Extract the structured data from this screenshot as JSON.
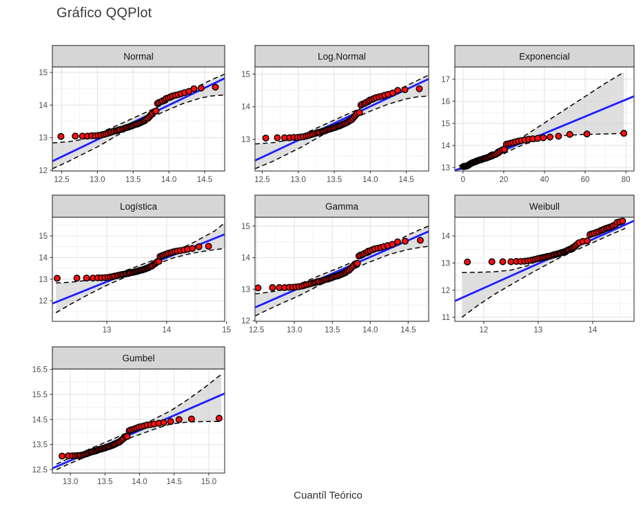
{
  "title": "Gráfico QQPlot",
  "axis": {
    "x_title": "Cuantíl Teórico"
  },
  "colors": {
    "background": "#ffffff",
    "point_fill": "#fa0f0f",
    "point_stroke": "#000000",
    "fit_line": "#1d1dff",
    "band_fill": "#d2d2d2",
    "band_dash_stroke": "#000000",
    "strip_bg": "#d6d6d6",
    "strip_border": "#3c3c3c",
    "panel_border": "#454545",
    "grid_major": "#e3e3e3",
    "grid_minor": "#efefef",
    "tick_label": "#4d4d4d"
  },
  "chart_data": {
    "type": "scatter",
    "subtype": "qq-plot-faceted",
    "title": "Gráfico QQPlot",
    "xlabel": "Cuantíl Teórico",
    "ylabel": "",
    "grid": true,
    "legend": false,
    "sample_y": [
      13.04,
      13.05,
      13.05,
      13.05,
      13.06,
      13.06,
      13.07,
      13.08,
      13.1,
      13.12,
      13.14,
      13.16,
      13.18,
      13.2,
      13.21,
      13.22,
      13.24,
      13.25,
      13.26,
      13.28,
      13.3,
      13.31,
      13.32,
      13.34,
      13.35,
      13.36,
      13.38,
      13.4,
      13.41,
      13.42,
      13.44,
      13.46,
      13.48,
      13.5,
      13.52,
      13.55,
      13.58,
      13.6,
      13.65,
      13.7,
      13.75,
      13.8,
      13.82,
      14.05,
      14.08,
      14.1,
      14.13,
      14.16,
      14.2,
      14.22,
      14.25,
      14.28,
      14.3,
      14.32,
      14.35,
      14.38,
      14.42,
      14.5,
      14.52,
      14.55
    ],
    "facets": [
      {
        "name": "Normal",
        "row": 0,
        "col": 0,
        "xlim": [
          12.37,
          14.78
        ],
        "ylim": [
          11.98,
          15.17
        ],
        "xticks": [
          12.5,
          13.0,
          13.5,
          14.0,
          14.5
        ],
        "xtick_labels": [
          "12.5",
          "13.0",
          "13.5",
          "14.0",
          "14.5"
        ],
        "yticks": [
          12,
          13,
          14,
          15
        ],
        "ytick_labels": [
          "12",
          "13",
          "14",
          "15"
        ],
        "line": [
          12.37,
          12.28,
          14.78,
          14.82
        ],
        "band": {
          "x": [
            12.37,
            12.6,
            12.8,
            13.0,
            13.3,
            13.6,
            13.9,
            14.2,
            14.45,
            14.6,
            14.78
          ],
          "lo": [
            12.05,
            12.28,
            12.5,
            12.72,
            13.1,
            13.45,
            13.77,
            14.05,
            14.22,
            14.28,
            14.31
          ],
          "hi": [
            12.84,
            12.88,
            12.95,
            13.12,
            13.4,
            13.7,
            14.0,
            14.35,
            14.62,
            14.78,
            14.95
          ]
        },
        "x": [
          12.49,
          12.69,
          12.79,
          12.86,
          12.92,
          12.97,
          13.01,
          13.05,
          13.09,
          13.12,
          13.15,
          13.18,
          13.2,
          13.23,
          13.26,
          13.28,
          13.3,
          13.32,
          13.35,
          13.37,
          13.39,
          13.41,
          13.43,
          13.45,
          13.47,
          13.48,
          13.5,
          13.52,
          13.54,
          13.56,
          13.58,
          13.6,
          13.62,
          13.64,
          13.66,
          13.67,
          13.69,
          13.71,
          13.73,
          13.75,
          13.77,
          13.8,
          13.82,
          13.84,
          13.86,
          13.89,
          13.91,
          13.94,
          13.96,
          13.99,
          14.02,
          14.05,
          14.09,
          14.13,
          14.17,
          14.22,
          14.28,
          14.35,
          14.45,
          14.65
        ]
      },
      {
        "name": "Log.Normal",
        "row": 0,
        "col": 1,
        "xlim": [
          12.4,
          14.81
        ],
        "ylim": [
          12.03,
          15.22
        ],
        "xticks": [
          12.5,
          13.0,
          13.5,
          14.0,
          14.5
        ],
        "xtick_labels": [
          "12.5",
          "13.0",
          "13.5",
          "14.0",
          "14.5"
        ],
        "yticks": [
          13,
          14,
          15
        ],
        "ytick_labels": [
          "13",
          "14",
          "15"
        ],
        "line": [
          12.4,
          12.35,
          14.81,
          14.85
        ],
        "band": {
          "x": [
            12.4,
            12.65,
            12.85,
            13.05,
            13.35,
            13.65,
            13.95,
            14.25,
            14.5,
            14.65,
            14.81
          ],
          "lo": [
            12.1,
            12.33,
            12.55,
            12.77,
            13.15,
            13.5,
            13.82,
            14.08,
            14.24,
            14.3,
            14.33
          ],
          "hi": [
            12.86,
            12.9,
            12.97,
            13.14,
            13.44,
            13.74,
            14.04,
            14.38,
            14.64,
            14.8,
            14.97
          ]
        },
        "x": [
          12.55,
          12.71,
          12.81,
          12.88,
          12.94,
          12.99,
          13.03,
          13.07,
          13.11,
          13.14,
          13.17,
          13.2,
          13.23,
          13.26,
          13.28,
          13.3,
          13.33,
          13.35,
          13.37,
          13.39,
          13.41,
          13.43,
          13.45,
          13.47,
          13.49,
          13.51,
          13.53,
          13.55,
          13.57,
          13.58,
          13.6,
          13.62,
          13.64,
          13.66,
          13.68,
          13.7,
          13.72,
          13.74,
          13.76,
          13.78,
          13.8,
          13.82,
          13.85,
          13.87,
          13.89,
          13.92,
          13.94,
          13.97,
          13.99,
          14.02,
          14.05,
          14.08,
          14.12,
          14.16,
          14.2,
          14.25,
          14.31,
          14.38,
          14.48,
          14.68
        ]
      },
      {
        "name": "Exponencial",
        "row": 0,
        "col": 2,
        "xlim": [
          -4,
          84
        ],
        "ylim": [
          12.84,
          17.56
        ],
        "xticks": [
          0,
          20,
          40,
          60,
          80
        ],
        "xtick_labels": [
          "0",
          "20",
          "40",
          "60",
          "80"
        ],
        "yticks": [
          13,
          14,
          15,
          16,
          17
        ],
        "ytick_labels": [
          "13",
          "14",
          "15",
          "16",
          "17"
        ],
        "line": [
          -4,
          12.86,
          84,
          16.23
        ],
        "band": {
          "x": [
            -2,
            5,
            10,
            15,
            20,
            25,
            30,
            35,
            40,
            50,
            60,
            70,
            79
          ],
          "lo": [
            12.9,
            13.1,
            13.28,
            13.45,
            13.62,
            13.85,
            14.05,
            14.18,
            14.28,
            14.45,
            14.5,
            14.52,
            14.55
          ],
          "hi": [
            13.08,
            13.32,
            13.52,
            13.74,
            13.97,
            14.2,
            14.42,
            14.72,
            15.02,
            15.62,
            16.22,
            16.82,
            17.32
          ]
        },
        "x": [
          0.14,
          0.42,
          0.7,
          0.99,
          1.29,
          1.59,
          1.89,
          2.2,
          2.52,
          2.84,
          3.17,
          3.51,
          3.85,
          4.21,
          4.56,
          4.93,
          5.31,
          5.69,
          6.08,
          6.48,
          6.9,
          7.32,
          7.76,
          8.2,
          8.66,
          9.13,
          9.62,
          10.12,
          10.63,
          11.17,
          11.72,
          12.28,
          12.88,
          13.49,
          14.12,
          14.78,
          15.47,
          16.18,
          16.93,
          17.72,
          18.54,
          19.42,
          20.34,
          21.3,
          22.34,
          23.43,
          24.61,
          25.88,
          27.26,
          28.76,
          30.42,
          32.25,
          34.31,
          36.67,
          39.43,
          42.74,
          46.91,
          52.44,
          60.87,
          78.99
        ]
      },
      {
        "name": "Logística",
        "row": 1,
        "col": 0,
        "xlim": [
          12.09,
          14.97
        ],
        "ylim": [
          11.05,
          15.86
        ],
        "xticks": [
          13,
          14,
          15
        ],
        "xtick_labels": [
          "13",
          "14",
          "15"
        ],
        "yticks": [
          12,
          13,
          14,
          15
        ],
        "ytick_labels": [
          "12",
          "13",
          "14",
          "15"
        ],
        "line": [
          12.09,
          11.87,
          14.97,
          15.07
        ],
        "band": {
          "x": [
            12.15,
            12.4,
            12.7,
            13.0,
            13.4,
            13.8,
            14.1,
            14.4,
            14.6,
            14.8,
            14.97
          ],
          "lo": [
            11.45,
            11.85,
            12.3,
            12.72,
            13.2,
            13.65,
            13.97,
            14.18,
            14.28,
            14.36,
            14.42
          ],
          "hi": [
            12.82,
            12.86,
            12.95,
            13.12,
            13.48,
            13.9,
            14.25,
            14.62,
            14.92,
            15.22,
            15.6
          ]
        },
        "x": [
          12.17,
          12.5,
          12.66,
          12.77,
          12.85,
          12.91,
          12.97,
          13.02,
          13.06,
          13.1,
          13.13,
          13.17,
          13.2,
          13.23,
          13.26,
          13.28,
          13.31,
          13.33,
          13.36,
          13.38,
          13.4,
          13.43,
          13.45,
          13.47,
          13.49,
          13.51,
          13.53,
          13.55,
          13.57,
          13.59,
          13.61,
          13.63,
          13.65,
          13.67,
          13.69,
          13.71,
          13.73,
          13.75,
          13.77,
          13.8,
          13.82,
          13.84,
          13.87,
          13.89,
          13.92,
          13.94,
          13.97,
          14.0,
          14.03,
          14.07,
          14.1,
          14.14,
          14.18,
          14.23,
          14.29,
          14.35,
          14.43,
          14.54,
          14.7,
          15.03
        ]
      },
      {
        "name": "Gamma",
        "row": 1,
        "col": 1,
        "xlim": [
          12.48,
          14.77
        ],
        "ylim": [
          11.98,
          15.28
        ],
        "xticks": [
          12.5,
          13.0,
          13.5,
          14.0,
          14.5
        ],
        "xtick_labels": [
          "12.5",
          "13.0",
          "13.5",
          "14.0",
          "14.5"
        ],
        "yticks": [
          12,
          13,
          14,
          15
        ],
        "ytick_labels": [
          "12",
          "13",
          "14",
          "15"
        ],
        "line": [
          12.48,
          12.42,
          14.77,
          14.83
        ],
        "band": {
          "x": [
            12.48,
            12.65,
            12.85,
            13.05,
            13.35,
            13.65,
            13.95,
            14.25,
            14.5,
            14.65,
            14.77
          ],
          "lo": [
            12.15,
            12.35,
            12.57,
            12.78,
            13.15,
            13.5,
            13.82,
            14.1,
            14.26,
            14.32,
            14.36
          ],
          "hi": [
            12.85,
            12.9,
            12.98,
            13.15,
            13.45,
            13.74,
            14.05,
            14.4,
            14.72,
            14.88,
            15.0
          ]
        },
        "x": [
          12.52,
          12.71,
          12.8,
          12.87,
          12.93,
          12.98,
          13.02,
          13.06,
          13.1,
          13.13,
          13.16,
          13.19,
          13.22,
          13.25,
          13.27,
          13.29,
          13.31,
          13.33,
          13.36,
          13.38,
          13.4,
          13.42,
          13.44,
          13.46,
          13.48,
          13.49,
          13.51,
          13.53,
          13.55,
          13.57,
          13.59,
          13.61,
          13.63,
          13.65,
          13.67,
          13.68,
          13.7,
          13.72,
          13.74,
          13.76,
          13.78,
          13.81,
          13.83,
          13.85,
          13.87,
          13.9,
          13.92,
          13.95,
          13.97,
          14.0,
          14.03,
          14.06,
          14.1,
          14.14,
          14.18,
          14.23,
          14.29,
          14.36,
          14.46,
          14.66
        ]
      },
      {
        "name": "Weibull",
        "row": 1,
        "col": 2,
        "xlim": [
          11.47,
          14.76
        ],
        "ylim": [
          10.85,
          14.69
        ],
        "xticks": [
          12,
          13,
          14
        ],
        "xtick_labels": [
          "12",
          "13",
          "14"
        ],
        "yticks": [
          11,
          12,
          13,
          14
        ],
        "ytick_labels": [
          "11",
          "12",
          "13",
          "14"
        ],
        "line": [
          11.47,
          11.6,
          14.76,
          14.56
        ],
        "band": {
          "x": [
            11.6,
            11.9,
            12.2,
            12.5,
            12.8,
            13.1,
            13.4,
            13.7,
            14.0,
            14.3,
            14.6
          ],
          "lo": [
            11.0,
            11.45,
            11.85,
            12.2,
            12.55,
            12.88,
            13.2,
            13.48,
            13.75,
            14.02,
            14.28
          ],
          "hi": [
            12.65,
            12.66,
            12.68,
            12.74,
            12.9,
            13.18,
            13.45,
            13.72,
            13.98,
            14.25,
            14.47
          ]
        },
        "x": [
          11.7,
          12.15,
          12.35,
          12.5,
          12.6,
          12.68,
          12.75,
          12.81,
          12.86,
          12.91,
          12.95,
          12.99,
          13.03,
          13.07,
          13.1,
          13.13,
          13.16,
          13.19,
          13.22,
          13.25,
          13.28,
          13.3,
          13.33,
          13.35,
          13.38,
          13.4,
          13.42,
          13.45,
          13.47,
          13.49,
          13.51,
          13.53,
          13.55,
          13.57,
          13.6,
          13.62,
          13.64,
          13.67,
          13.69,
          13.72,
          13.75,
          13.82,
          13.9,
          13.95,
          13.99,
          14.03,
          14.07,
          14.11,
          14.15,
          14.18,
          14.21,
          14.25,
          14.28,
          14.31,
          14.35,
          14.38,
          14.42,
          14.45,
          14.5,
          14.55
        ]
      },
      {
        "name": "Gumbel",
        "row": 2,
        "col": 0,
        "xlim": [
          12.74,
          15.23
        ],
        "ylim": [
          12.36,
          16.52
        ],
        "xticks": [
          13.0,
          13.5,
          14.0,
          14.5,
          15.0
        ],
        "xtick_labels": [
          "13.0",
          "13.5",
          "14.0",
          "14.5",
          "15.0"
        ],
        "yticks": [
          12.5,
          13.5,
          14.5,
          15.5,
          16.5
        ],
        "ytick_labels": [
          "12.5",
          "13.5",
          "14.5",
          "15.5",
          "16.5"
        ],
        "line": [
          12.74,
          12.55,
          15.23,
          15.54
        ],
        "band": {
          "x": [
            12.8,
            13.0,
            13.3,
            13.6,
            13.9,
            14.2,
            14.45,
            14.7,
            14.95,
            15.18
          ],
          "lo": [
            12.5,
            12.75,
            13.1,
            13.46,
            13.8,
            14.1,
            14.32,
            14.4,
            14.42,
            14.42
          ],
          "hi": [
            12.72,
            12.98,
            13.35,
            13.7,
            14.08,
            14.5,
            14.85,
            15.3,
            15.8,
            16.3
          ]
        },
        "x": [
          12.88,
          12.97,
          13.03,
          13.07,
          13.1,
          13.13,
          13.15,
          13.18,
          13.2,
          13.22,
          13.24,
          13.26,
          13.28,
          13.3,
          13.31,
          13.33,
          13.35,
          13.37,
          13.38,
          13.4,
          13.41,
          13.43,
          13.45,
          13.46,
          13.48,
          13.5,
          13.51,
          13.53,
          13.55,
          13.56,
          13.58,
          13.6,
          13.62,
          13.63,
          13.65,
          13.67,
          13.69,
          13.71,
          13.73,
          13.75,
          13.77,
          13.8,
          13.82,
          13.85,
          13.87,
          13.9,
          13.93,
          13.96,
          13.99,
          14.03,
          14.07,
          14.11,
          14.16,
          14.21,
          14.28,
          14.35,
          14.45,
          14.57,
          14.75,
          15.15
        ]
      }
    ]
  }
}
